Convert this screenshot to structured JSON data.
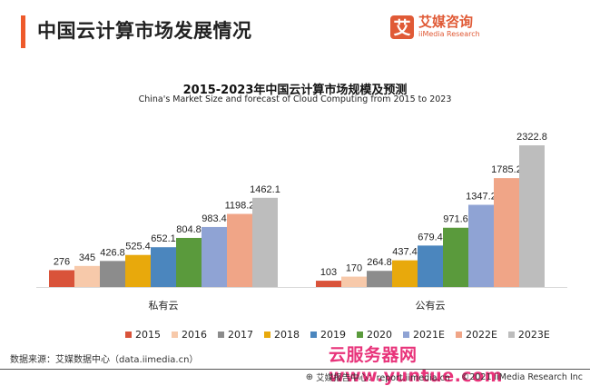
{
  "header": {
    "title": "中国云计算市场发展情况",
    "logo_mark": "艾",
    "logo_cn": "艾媒咨询",
    "logo_en": "iiMedia Research"
  },
  "colors": {
    "accent": "#ee5a2b",
    "series": [
      "#d9533a",
      "#f7c9aa",
      "#8c8c8c",
      "#e8a90c",
      "#4b86be",
      "#5a9a3c",
      "#8fa3d4",
      "#f0a587",
      "#bdbdbd"
    ]
  },
  "chart_data": {
    "type": "bar",
    "title": "2015-2023年中国云计算市场规模及预测",
    "subtitle": "China's Market Size and forecast of Cloud Computing from 2015 to 2023",
    "categories": [
      "私有云",
      "公有云"
    ],
    "series": [
      {
        "name": "2015",
        "values": [
          276,
          103
        ]
      },
      {
        "name": "2016",
        "values": [
          345,
          170
        ]
      },
      {
        "name": "2017",
        "values": [
          426.8,
          264.8
        ]
      },
      {
        "name": "2018",
        "values": [
          525.4,
          437.4
        ]
      },
      {
        "name": "2019",
        "values": [
          652.1,
          679.4
        ]
      },
      {
        "name": "2020",
        "values": [
          804.8,
          971.6
        ]
      },
      {
        "name": "2021E",
        "values": [
          983.4,
          1347.2
        ]
      },
      {
        "name": "2022E",
        "values": [
          1198.2,
          1785.2
        ]
      },
      {
        "name": "2023E",
        "values": [
          1462.1,
          2322.8
        ]
      }
    ],
    "xlabel": "",
    "ylabel": "",
    "ylim": [
      0,
      2400
    ],
    "grid": false,
    "legend": "bottom"
  },
  "source": "数据来源：艾媒数据中心（data.iimedia.cn）",
  "watermark": "云服务器网 www.yuntue.com",
  "footer": {
    "report": "艾媒报告中心：report.iimedia.cn",
    "copyright": "©2021  iiMedia Research Inc"
  }
}
